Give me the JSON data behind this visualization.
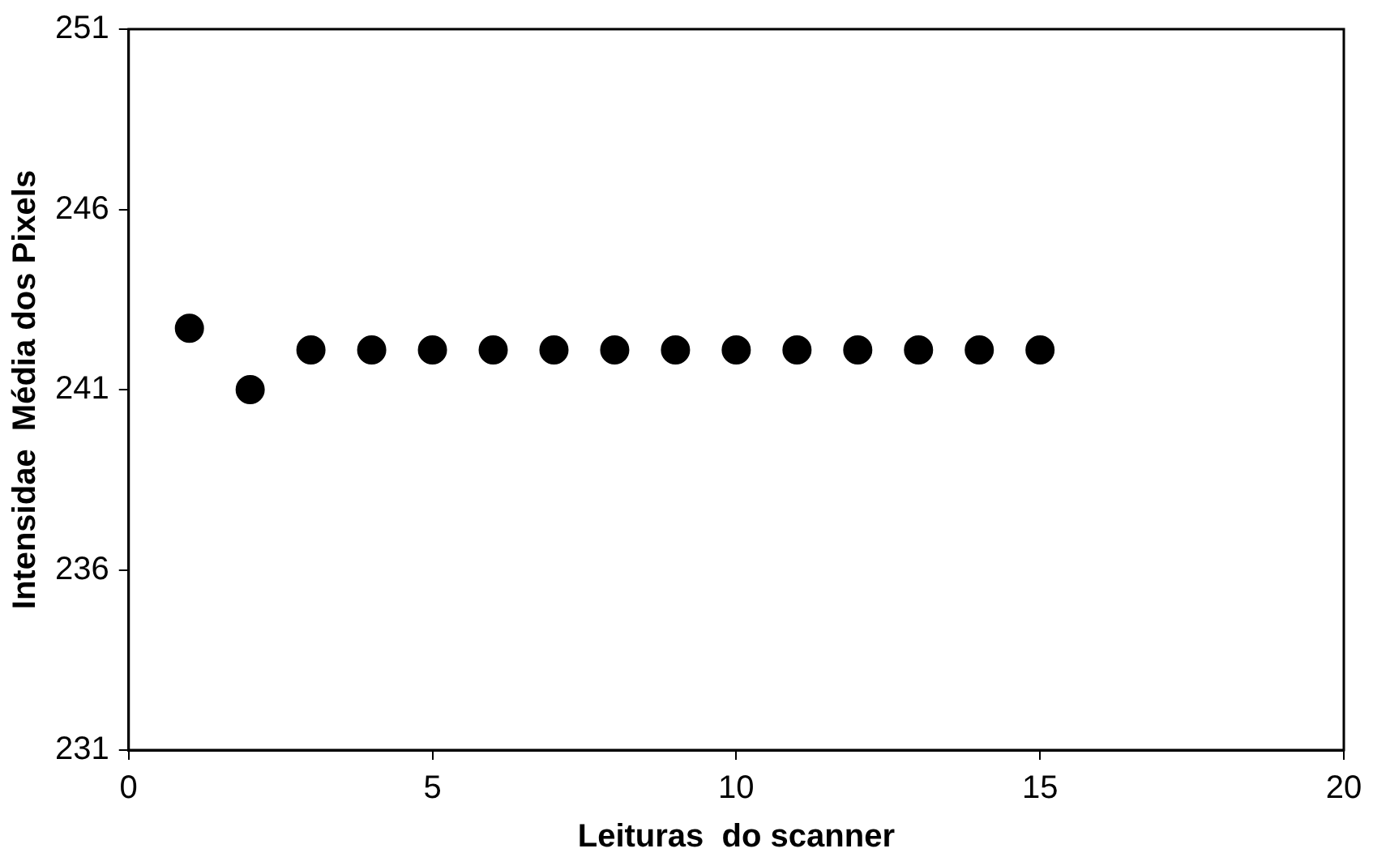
{
  "chart_data": {
    "type": "scatter",
    "xlabel": "Leituras  do scanner",
    "ylabel": "Intensidae  Média dos Pixels",
    "x": [
      1,
      2,
      3,
      4,
      5,
      6,
      7,
      8,
      9,
      10,
      11,
      12,
      13,
      14,
      15
    ],
    "values": [
      242.7,
      241.0,
      242.1,
      242.1,
      242.1,
      242.1,
      242.1,
      242.1,
      242.1,
      242.1,
      242.1,
      242.1,
      242.1,
      242.1,
      242.1
    ],
    "color": "#000000",
    "marker": "circle",
    "xlim": [
      0,
      20
    ],
    "xticks": [
      0,
      5,
      10,
      15,
      20
    ],
    "ylim": [
      231,
      251
    ],
    "yticks": [
      231,
      236,
      241,
      246,
      251
    ],
    "grid": false,
    "legend": false
  }
}
